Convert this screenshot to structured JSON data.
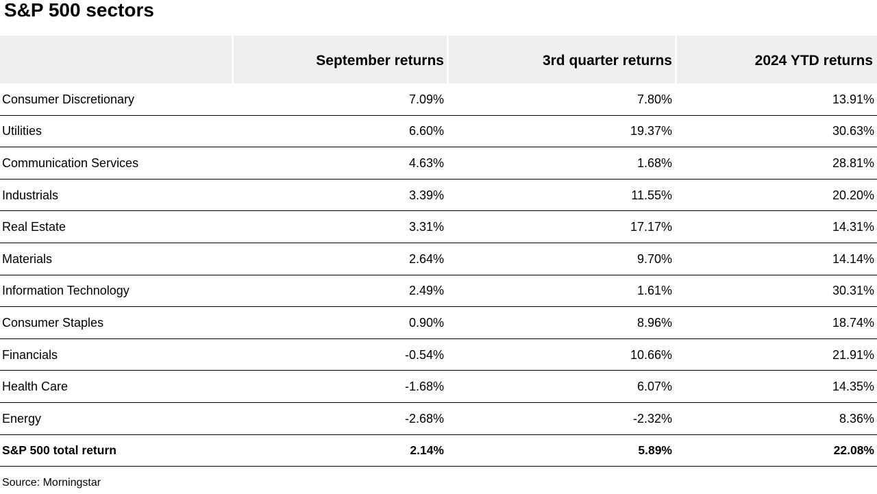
{
  "title": "S&P 500 sectors",
  "table": {
    "headers": [
      "",
      "September returns",
      "3rd quarter returns",
      "2024 YTD returns"
    ],
    "rows": [
      [
        "Consumer Discretionary",
        "7.09%",
        "7.80%",
        "13.91%"
      ],
      [
        "Utilities",
        "6.60%",
        "19.37%",
        "30.63%"
      ],
      [
        "Communication Services",
        "4.63%",
        "1.68%",
        "28.81%"
      ],
      [
        "Industrials",
        "3.39%",
        "11.55%",
        "20.20%"
      ],
      [
        "Real Estate",
        "3.31%",
        "17.17%",
        "14.31%"
      ],
      [
        "Materials",
        "2.64%",
        "9.70%",
        "14.14%"
      ],
      [
        "Information Technology",
        "2.49%",
        "1.61%",
        "30.31%"
      ],
      [
        "Consumer Staples",
        "0.90%",
        "8.96%",
        "18.74%"
      ],
      [
        "Financials",
        "-0.54%",
        "10.66%",
        "21.91%"
      ],
      [
        "Health Care",
        "-1.68%",
        "6.07%",
        "14.35%"
      ],
      [
        "Energy",
        "-2.68%",
        "-2.32%",
        "8.36%"
      ]
    ],
    "total": [
      "S&P 500 total return",
      "2.14%",
      "5.89%",
      "22.08%"
    ]
  },
  "source": "Source: Morningstar",
  "colors": {
    "header_background": "#efefef",
    "row_divider": "#000000"
  }
}
